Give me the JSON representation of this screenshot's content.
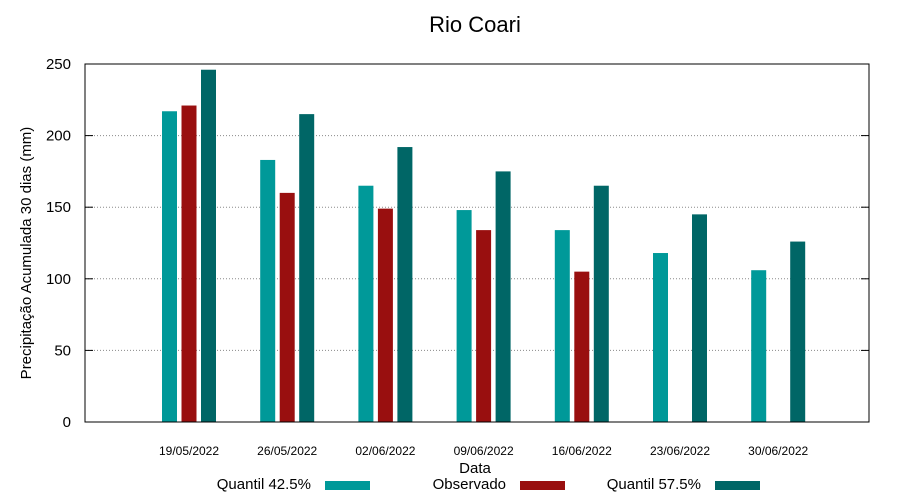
{
  "chart_data": {
    "type": "bar",
    "title": "Rio Coari",
    "xlabel": "Data",
    "ylabel": "Precipitação Acumulada 30 dias (mm)",
    "ylim": [
      0,
      250
    ],
    "yticks": [
      0,
      50,
      100,
      150,
      200,
      250
    ],
    "grid": true,
    "legend_position": "bottom",
    "categories": [
      "19/05/2022",
      "26/05/2022",
      "02/06/2022",
      "09/06/2022",
      "16/06/2022",
      "23/06/2022",
      "30/06/2022"
    ],
    "series": [
      {
        "name": "Quantil 42.5%",
        "color": "#009999",
        "values": [
          217,
          183,
          165,
          148,
          134,
          118,
          106
        ]
      },
      {
        "name": "Observado",
        "color": "#990f0f",
        "values": [
          221,
          160,
          149,
          134,
          105,
          null,
          null
        ]
      },
      {
        "name": "Quantil 57.5%",
        "color": "#006666",
        "values": [
          246,
          215,
          192,
          175,
          165,
          145,
          126
        ]
      }
    ]
  }
}
